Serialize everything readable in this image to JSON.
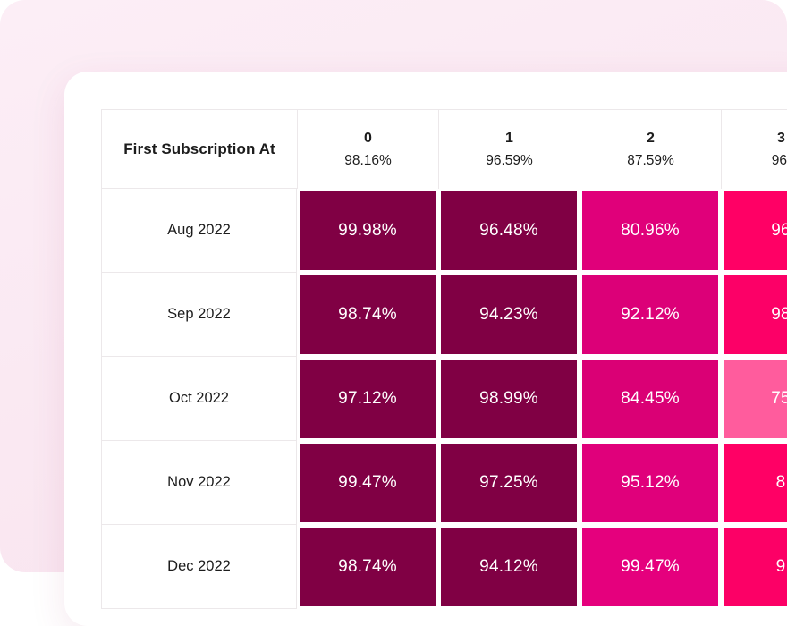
{
  "theme": {
    "page_bg_top": "#FCEEF6",
    "page_bg_bottom": "#F8E3EE",
    "card_bg": "#FFFFFF",
    "grid_border": "#ECE8EA",
    "text_dark": "#1C1C1C",
    "cell_text": "#FFFFFF",
    "dark_maroon": "#800044",
    "magenta": "#DE0077",
    "hot_pink": "#FF0065",
    "light_pink": "#FF5C9D"
  },
  "table": {
    "corner_label": "First Subscription At",
    "columns": [
      {
        "number": "0",
        "rate": "98.16%"
      },
      {
        "number": "1",
        "rate": "96.59%"
      },
      {
        "number": "2",
        "rate": "87.59%"
      },
      {
        "number": "3",
        "rate": "96.",
        "clipped": true
      }
    ],
    "rows": [
      {
        "label": "Aug 2022",
        "cells": [
          {
            "value": "99.98%",
            "color": "#800044"
          },
          {
            "value": "96.48%",
            "color": "#800044"
          },
          {
            "value": "80.96%",
            "color": "#E0007A"
          },
          {
            "value": "96",
            "color": "#FF0065",
            "clipped": true
          }
        ]
      },
      {
        "label": "Sep 2022",
        "cells": [
          {
            "value": "98.74%",
            "color": "#800044"
          },
          {
            "value": "94.23%",
            "color": "#800044"
          },
          {
            "value": "92.12%",
            "color": "#DC0078"
          },
          {
            "value": "98",
            "color": "#FC0067",
            "clipped": true
          }
        ]
      },
      {
        "label": "Oct 2022",
        "cells": [
          {
            "value": "97.12%",
            "color": "#800044"
          },
          {
            "value": "98.99%",
            "color": "#800044"
          },
          {
            "value": "84.45%",
            "color": "#DA0075"
          },
          {
            "value": "75",
            "color": "#FF5C9D",
            "clipped": true
          }
        ]
      },
      {
        "label": "Nov 2022",
        "cells": [
          {
            "value": "99.47%",
            "color": "#800044"
          },
          {
            "value": "97.25%",
            "color": "#800044"
          },
          {
            "value": "95.12%",
            "color": "#E0007B"
          },
          {
            "value": "8",
            "color": "#FF0065",
            "clipped": true
          }
        ]
      },
      {
        "label": "Dec 2022",
        "cells": [
          {
            "value": "98.74%",
            "color": "#800044"
          },
          {
            "value": "94.12%",
            "color": "#800044"
          },
          {
            "value": "99.47%",
            "color": "#E5007D"
          },
          {
            "value": "9",
            "color": "#FC0066",
            "clipped": true
          }
        ]
      }
    ]
  },
  "chart_data": {
    "type": "heatmap",
    "title": "",
    "corner_label": "First Subscription At",
    "columns": [
      "0",
      "1",
      "2",
      "3"
    ],
    "column_overall_rates_pct": [
      98.16,
      96.59,
      87.59,
      null
    ],
    "rows": [
      "Aug 2022",
      "Sep 2022",
      "Oct 2022",
      "Nov 2022",
      "Dec 2022"
    ],
    "values_pct": [
      [
        99.98,
        96.48,
        80.96,
        null
      ],
      [
        98.74,
        94.23,
        92.12,
        null
      ],
      [
        97.12,
        98.99,
        84.45,
        null
      ],
      [
        99.47,
        97.25,
        95.12,
        null
      ],
      [
        98.74,
        94.12,
        99.47,
        null
      ]
    ],
    "note": "Column 3 values are clipped at the right edge of the viewport; visible fragments: 96., 96, 98, 75, 8, 9",
    "legend_position": "none",
    "grid": true
  }
}
